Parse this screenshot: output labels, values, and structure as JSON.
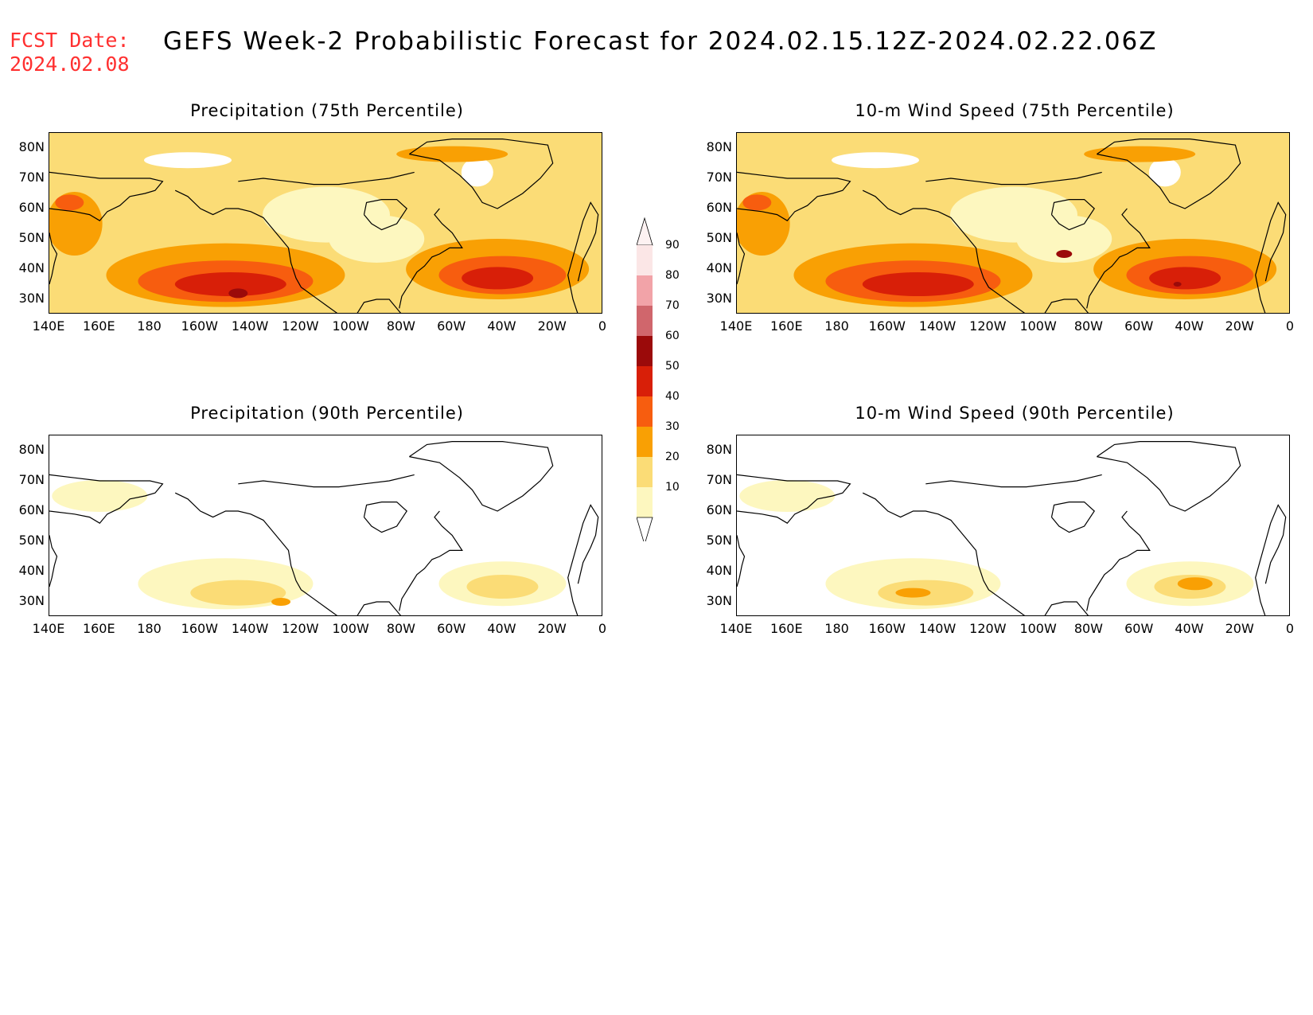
{
  "header": {
    "fcst_line1": "FCST Date:",
    "fcst_line2": "2024.02.08",
    "title": "GEFS Week-2 Probabilistic Forecast for 2024.02.15.12Z-2024.02.22.06Z",
    "fcst_color": "#ff3030"
  },
  "axes": {
    "lat_labels": [
      "80N",
      "70N",
      "60N",
      "50N",
      "40N",
      "30N"
    ],
    "lon_labels": [
      "140E",
      "160E",
      "180",
      "160W",
      "140W",
      "120W",
      "100W",
      "80W",
      "60W",
      "40W",
      "20W",
      "0"
    ]
  },
  "panels": [
    {
      "title": "Precipitation (75th Percentile)",
      "intensity": "high"
    },
    {
      "title": "10-m Wind Speed (75th Percentile)",
      "intensity": "high"
    },
    {
      "title": "Precipitation (90th Percentile)",
      "intensity": "low"
    },
    {
      "title": "10-m Wind Speed (90th Percentile)",
      "intensity": "low"
    }
  ],
  "legend": {
    "levels": [
      "90",
      "80",
      "70",
      "60",
      "50",
      "40",
      "30",
      "20",
      "10"
    ],
    "colors": [
      "#fbe6e6",
      "#f2a3a8",
      "#d0666c",
      "#9b0a0a",
      "#d81f08",
      "#f75d0f",
      "#f9a004",
      "#fbdc76",
      "#fdf7bf"
    ]
  }
}
